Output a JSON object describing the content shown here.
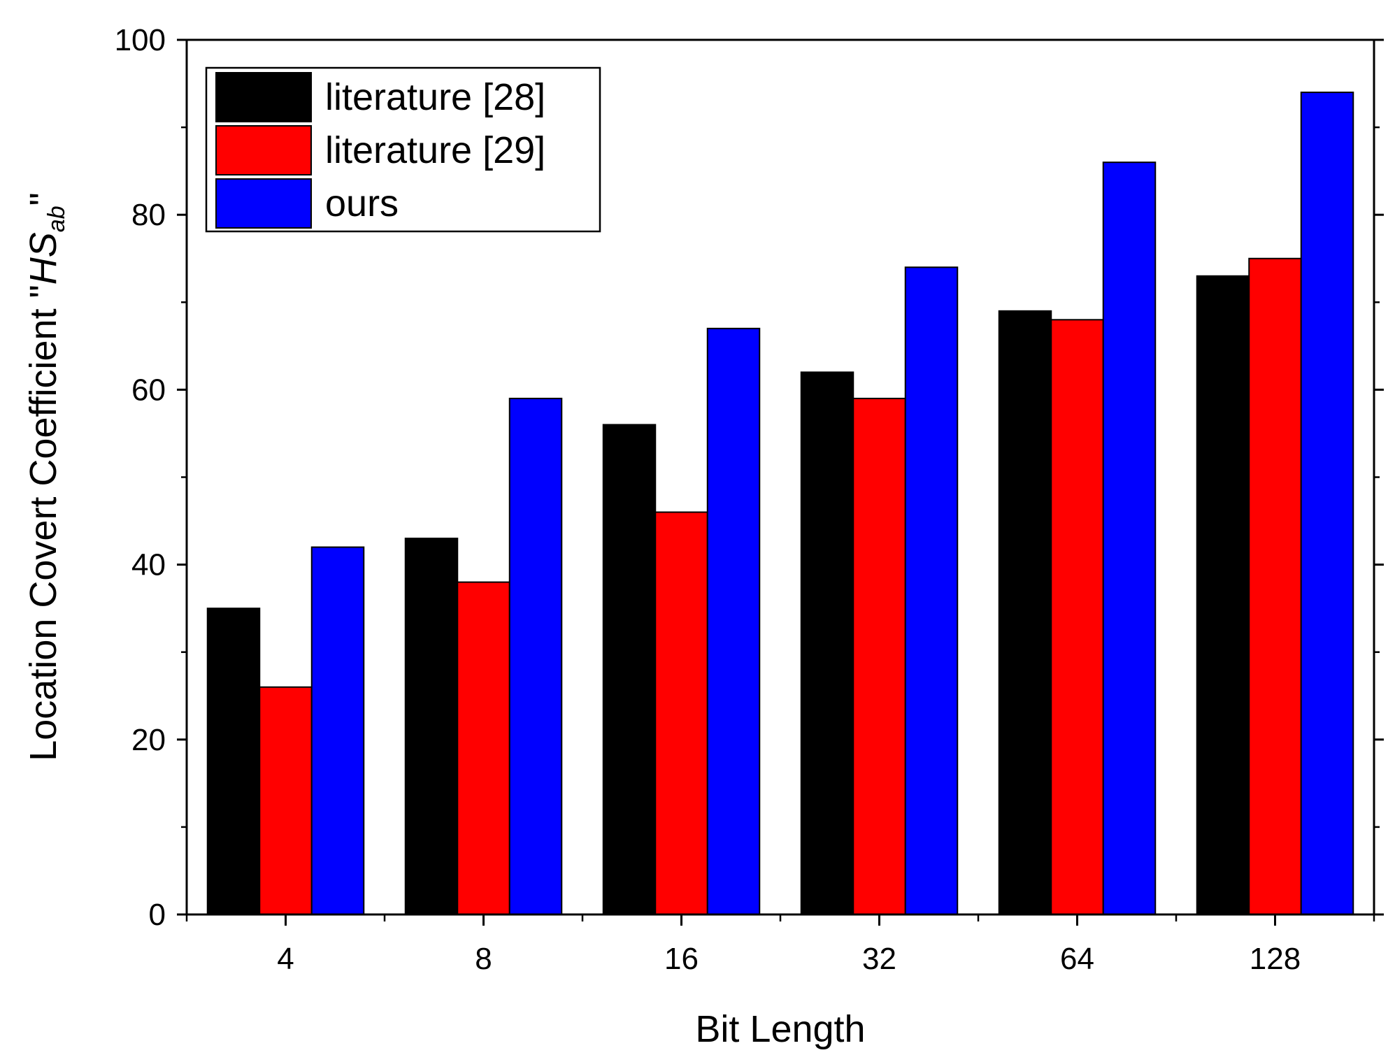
{
  "chart_data": {
    "type": "bar",
    "title": "",
    "xlabel": "Bit Length",
    "ylabel": {
      "prefix": "Location Covert Coefficient \"",
      "symbol": "HS",
      "subscript": "ab",
      "suffix": "\""
    },
    "categories": [
      "4",
      "8",
      "16",
      "32",
      "64",
      "128"
    ],
    "ylim": [
      0,
      100
    ],
    "yticks": [
      "0",
      "20",
      "40",
      "60",
      "80",
      "100"
    ],
    "grid": false,
    "legend_position": "top-left",
    "series": [
      {
        "name": "literature [28]",
        "color": "#000000",
        "values": [
          35,
          43,
          56,
          62,
          69,
          73
        ]
      },
      {
        "name": "literature [29]",
        "color": "#ff0000",
        "values": [
          26,
          38,
          46,
          59,
          68,
          75
        ]
      },
      {
        "name": "ours",
        "color": "#0000ff",
        "values": [
          42,
          59,
          67,
          74,
          86,
          94
        ]
      }
    ]
  }
}
